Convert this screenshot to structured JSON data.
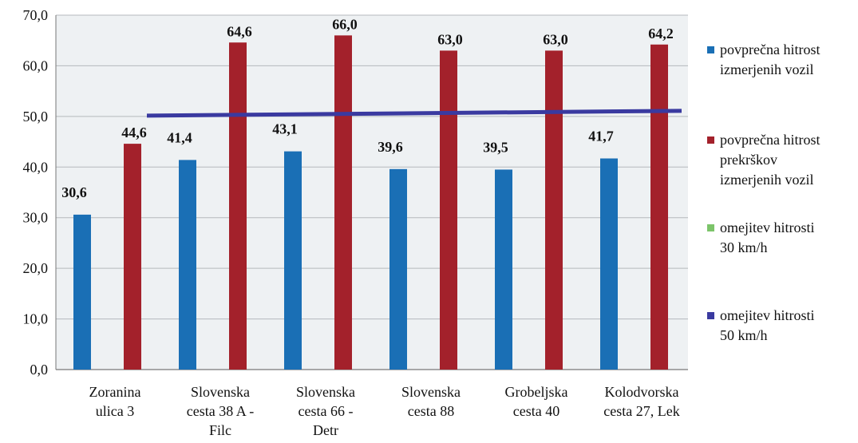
{
  "chart_data": {
    "type": "bar",
    "categories": [
      [
        "Zoranina",
        "ulica 3"
      ],
      [
        "Slovenska",
        "cesta 38 A -",
        "Filc"
      ],
      [
        "Slovenska",
        "cesta 66 -",
        "Detr"
      ],
      [
        "Slovenska",
        "cesta 88"
      ],
      [
        "Grobeljska",
        "cesta 40"
      ],
      [
        "Kolodvorska",
        "cesta 27, Lek"
      ]
    ],
    "series": [
      {
        "name": "povprečna hitrost izmerjenih vozil",
        "legend_lines": [
          "povprečna hitrost",
          "izmerjenih vozil"
        ],
        "color": "#1a6fb5",
        "values": [
          30.6,
          41.4,
          43.1,
          39.6,
          39.5,
          41.7
        ],
        "labels": [
          "30,6",
          "41,4",
          "43,1",
          "39,6",
          "39,5",
          "41,7"
        ]
      },
      {
        "name": "povprečna hitrost prekrškov izmerjenih vozil",
        "legend_lines": [
          "povprečna hitrost",
          "prekrškov",
          "izmerjenih vozil"
        ],
        "color": "#a3212b",
        "values": [
          44.6,
          64.6,
          66.0,
          63.0,
          63.0,
          64.2
        ],
        "labels": [
          "44,6",
          "64,6",
          "66,0",
          "63,0",
          "63,0",
          "64,2"
        ]
      }
    ],
    "reference_lines": [
      {
        "name": "omejitev hitrosti 30 km/h",
        "legend_lines": [
          "omejitev hitrosti",
          "30 km/h"
        ],
        "color": "#7cc46a",
        "value": 30,
        "drawn": false
      },
      {
        "name": "omejitev hitrosti 50 km/h",
        "legend_lines": [
          "omejitev hitrosti",
          "50 km/h"
        ],
        "color": "#3a3aa0",
        "value": 50,
        "drawn": true
      }
    ],
    "y_ticks": [
      "0,0",
      "10,0",
      "20,0",
      "30,0",
      "40,0",
      "50,0",
      "60,0",
      "70,0"
    ],
    "ylim": [
      0,
      70
    ],
    "grid": true,
    "legend_position": "right"
  }
}
